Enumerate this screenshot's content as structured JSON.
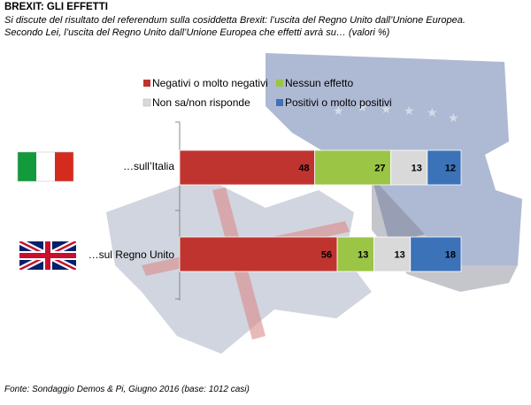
{
  "header": {
    "title": "BREXIT: GLI EFFETTI",
    "subtitle_line1": "Si discute del risultato del referendum sulla cosiddetta Brexit: l’uscita del Regno Unito dall’Unione Europea.",
    "subtitle_line2": "Secondo Lei, l’uscita del Regno Unito dall’Unione Europea che effetti avrà su… (valori %)"
  },
  "footer": {
    "source": "Fonte: Sondaggio Demos & Pi, Giugno 2016 (base: 1012 casi)"
  },
  "colors": {
    "negativi": "#c0342f",
    "nessun": "#9bc545",
    "non_sa": "#d9d9d9",
    "positivi": "#3b72b8"
  },
  "chart_data": {
    "type": "bar",
    "orientation": "horizontal",
    "stacked": true,
    "categories": [
      "…sull’Italia",
      "…sul Regno Unito"
    ],
    "series": [
      {
        "name": "Negativi o molto negativi",
        "values": [
          48,
          56
        ],
        "color": "#c0342f"
      },
      {
        "name": "Nessun effetto",
        "values": [
          27,
          13
        ],
        "color": "#9bc545"
      },
      {
        "name": "Non sa/non risponde",
        "values": [
          13,
          13
        ],
        "color": "#d9d9d9"
      },
      {
        "name": "Positivi o molto positivi",
        "values": [
          12,
          18
        ],
        "color": "#3b72b8"
      }
    ],
    "xlim": [
      0,
      100
    ],
    "legend_position": "top",
    "grid": false
  }
}
